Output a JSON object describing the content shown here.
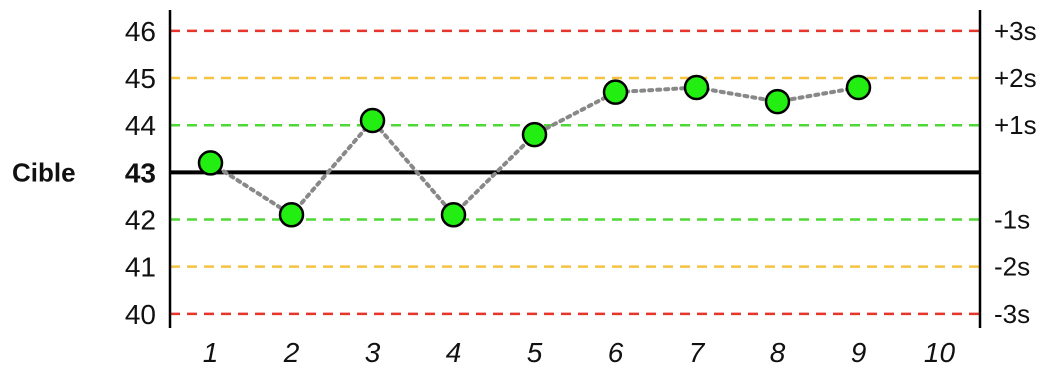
{
  "chart_data": {
    "type": "line",
    "title": "",
    "xlabel": "",
    "ylabel": "",
    "target": {
      "label": "Cible",
      "value": 43
    },
    "x": [
      1,
      2,
      3,
      4,
      5,
      6,
      7,
      8,
      9,
      10
    ],
    "x_tick_labels": [
      "1",
      "2",
      "3",
      "4",
      "5",
      "6",
      "7",
      "8",
      "9",
      "10"
    ],
    "xlim": [
      0.5,
      10.5
    ],
    "ylim": [
      39.7,
      46.4
    ],
    "y_ticks": [
      46,
      45,
      44,
      43,
      42,
      41,
      40
    ],
    "y_tick_labels": [
      "46",
      "45",
      "44",
      "43",
      "42",
      "41",
      "40"
    ],
    "control_lines": [
      {
        "label": "+3s",
        "value": 46,
        "color": "#e8352b",
        "dashed": true
      },
      {
        "label": "+2s",
        "value": 45,
        "color": "#f5c242",
        "dashed": true
      },
      {
        "label": "+1s",
        "value": 44,
        "color": "#4ed836",
        "dashed": true
      },
      {
        "label": "-1s",
        "value": 42,
        "color": "#4ed836",
        "dashed": true
      },
      {
        "label": "-2s",
        "value": 41,
        "color": "#f5c242",
        "dashed": true
      },
      {
        "label": "-3s",
        "value": 40,
        "color": "#e8352b",
        "dashed": true
      }
    ],
    "target_line_color": "#000000",
    "series": [
      {
        "x": [
          1,
          2,
          3,
          4,
          5,
          6,
          7,
          8,
          9
        ],
        "values": [
          43.2,
          42.1,
          44.1,
          42.1,
          43.8,
          44.7,
          44.8,
          44.5,
          44.8
        ],
        "marker_color": "#22ee11",
        "line_color": "#888888",
        "line_style": "dotted"
      }
    ],
    "grid": false,
    "legend": "none"
  }
}
